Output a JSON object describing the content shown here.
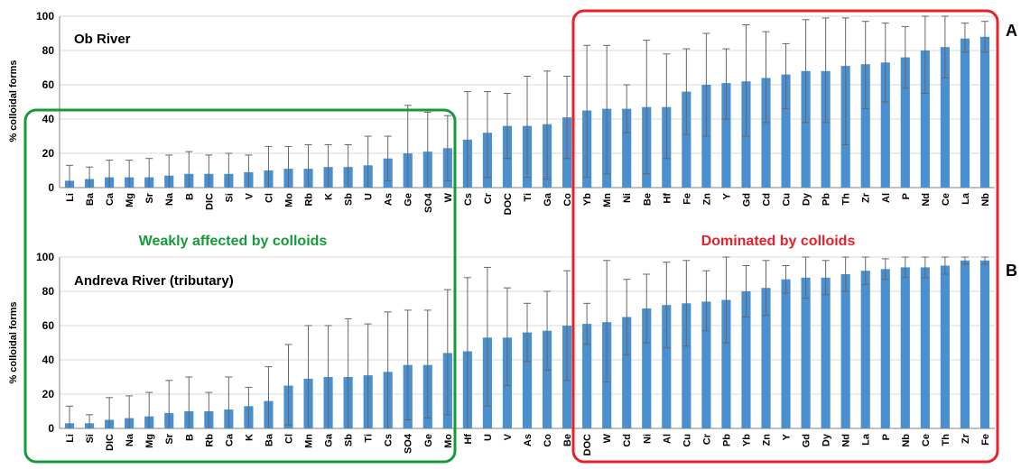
{
  "colors": {
    "bar": "#4a8fd0",
    "error_bar": "#666666",
    "green_box": "#159a3a",
    "red_box": "#e8202a",
    "grid": "#d9d9d9",
    "axis": "#808080",
    "text": "#000000"
  },
  "annotations": {
    "weakly_label": "Weakly affected by colloids",
    "dominated_label": "Dominated by colloids"
  },
  "chart_data": [
    {
      "type": "bar",
      "panel_letter": "A",
      "title": "Ob River",
      "ylabel": "% colloidal forms",
      "ylim": [
        0,
        100
      ],
      "yticks": [
        0,
        20,
        40,
        60,
        80,
        100
      ],
      "grid": true,
      "categories": [
        "Li",
        "Ba",
        "Ca",
        "Mg",
        "Sr",
        "Na",
        "B",
        "DIC",
        "Si",
        "V",
        "Cl",
        "Mo",
        "Rb",
        "K",
        "Sb",
        "U",
        "As",
        "Ge",
        "SO4",
        "W",
        "Cs",
        "Cr",
        "DOC",
        "Ti",
        "Ga",
        "Co",
        "Yb",
        "Mn",
        "Ni",
        "Be",
        "Hf",
        "Fe",
        "Zn",
        "Y",
        "Gd",
        "Cd",
        "Cu",
        "Dy",
        "Pb",
        "Th",
        "Zr",
        "Al",
        "P",
        "Nd",
        "Ce",
        "La",
        "Nb"
      ],
      "values": [
        4,
        5,
        6,
        6,
        6,
        7,
        8,
        8,
        8,
        9,
        10,
        11,
        11,
        12,
        12,
        13,
        17,
        20,
        21,
        23,
        28,
        32,
        36,
        36,
        37,
        41,
        45,
        46,
        46,
        47,
        47,
        56,
        60,
        61,
        62,
        64,
        66,
        68,
        68,
        71,
        72,
        73,
        76,
        80,
        82,
        87,
        88
      ],
      "error_upper": [
        13,
        12,
        16,
        16,
        17,
        19,
        21,
        19,
        20,
        19,
        24,
        24,
        25,
        25,
        25,
        30,
        30,
        48,
        44,
        42,
        56,
        56,
        55,
        65,
        68,
        65,
        83,
        83,
        60,
        86,
        78,
        81,
        90,
        81,
        95,
        91,
        84,
        98,
        99,
        99,
        97,
        96,
        94,
        100,
        100,
        96,
        97
      ],
      "error_lower": [
        0,
        0,
        0,
        0,
        0,
        0,
        0,
        0,
        0,
        0,
        0,
        0,
        0,
        0,
        0,
        0,
        4,
        0,
        0,
        4,
        0,
        6,
        17,
        6,
        5,
        17,
        6,
        8,
        32,
        8,
        17,
        31,
        30,
        40,
        30,
        38,
        46,
        38,
        38,
        25,
        46,
        50,
        58,
        55,
        64,
        79,
        79
      ]
    },
    {
      "type": "bar",
      "panel_letter": "B",
      "title": "Andreva River (tributary)",
      "ylabel": "% colloidal forms",
      "ylim": [
        0,
        100
      ],
      "yticks": [
        0,
        20,
        40,
        60,
        80,
        100
      ],
      "grid": true,
      "categories": [
        "Li",
        "Si",
        "DIC",
        "Na",
        "Mg",
        "Sr",
        "B",
        "Rb",
        "Ca",
        "K",
        "Ba",
        "Cl",
        "Mn",
        "Ga",
        "Sb",
        "Ti",
        "Cs",
        "SO4",
        "Ge",
        "Mo",
        "Hf",
        "U",
        "V",
        "As",
        "Co",
        "Be",
        "DOC",
        "W",
        "Cd",
        "Ni",
        "Al",
        "Cu",
        "Cr",
        "Pb",
        "Yb",
        "Zn",
        "Y",
        "Gd",
        "Dy",
        "Nd",
        "La",
        "P",
        "Nb",
        "Ce",
        "Th",
        "Zr",
        "Fe"
      ],
      "values": [
        3,
        3,
        5,
        6,
        7,
        9,
        10,
        10,
        11,
        13,
        16,
        25,
        29,
        30,
        30,
        31,
        33,
        37,
        37,
        44,
        45,
        53,
        53,
        56,
        57,
        60,
        61,
        62,
        65,
        70,
        72,
        73,
        74,
        75,
        80,
        82,
        87,
        88,
        88,
        90,
        92,
        93,
        94,
        94,
        95,
        98,
        98
      ],
      "error_upper": [
        13,
        8,
        18,
        19,
        21,
        28,
        30,
        21,
        30,
        24,
        36,
        49,
        60,
        60,
        64,
        61,
        68,
        69,
        69,
        81,
        88,
        94,
        82,
        73,
        80,
        92,
        73,
        98,
        87,
        90,
        97,
        98,
        92,
        100,
        95,
        98,
        95,
        100,
        98,
        100,
        100,
        99,
        100,
        100,
        100,
        100,
        100
      ],
      "error_lower": [
        0,
        0,
        0,
        0,
        0,
        0,
        0,
        0,
        0,
        0,
        0,
        2,
        0,
        0,
        0,
        0,
        0,
        5,
        6,
        8,
        0,
        13,
        25,
        39,
        34,
        28,
        49,
        27,
        43,
        50,
        47,
        48,
        57,
        50,
        65,
        66,
        79,
        76,
        78,
        80,
        84,
        87,
        88,
        88,
        90,
        96,
        96
      ]
    }
  ]
}
